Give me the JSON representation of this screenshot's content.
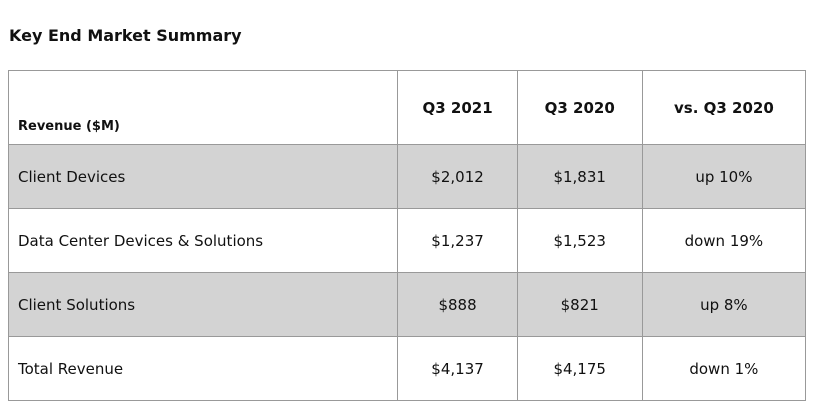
{
  "title": "Key End Market Summary",
  "table": {
    "header": [
      "Revenue ($M)",
      "Q3 2021",
      "Q3 2020",
      "vs. Q3 2020"
    ],
    "rows": [
      [
        "Client Devices",
        "$2,012",
        "$1,831",
        "up 10%"
      ],
      [
        "Data Center Devices & Solutions",
        "$1,237",
        "$1,523",
        "down 19%"
      ],
      [
        "Client Solutions",
        "$888",
        "$821",
        "up 8%"
      ],
      [
        "Total Revenue",
        "$4,137",
        "$4,175",
        "down 1%"
      ]
    ]
  }
}
